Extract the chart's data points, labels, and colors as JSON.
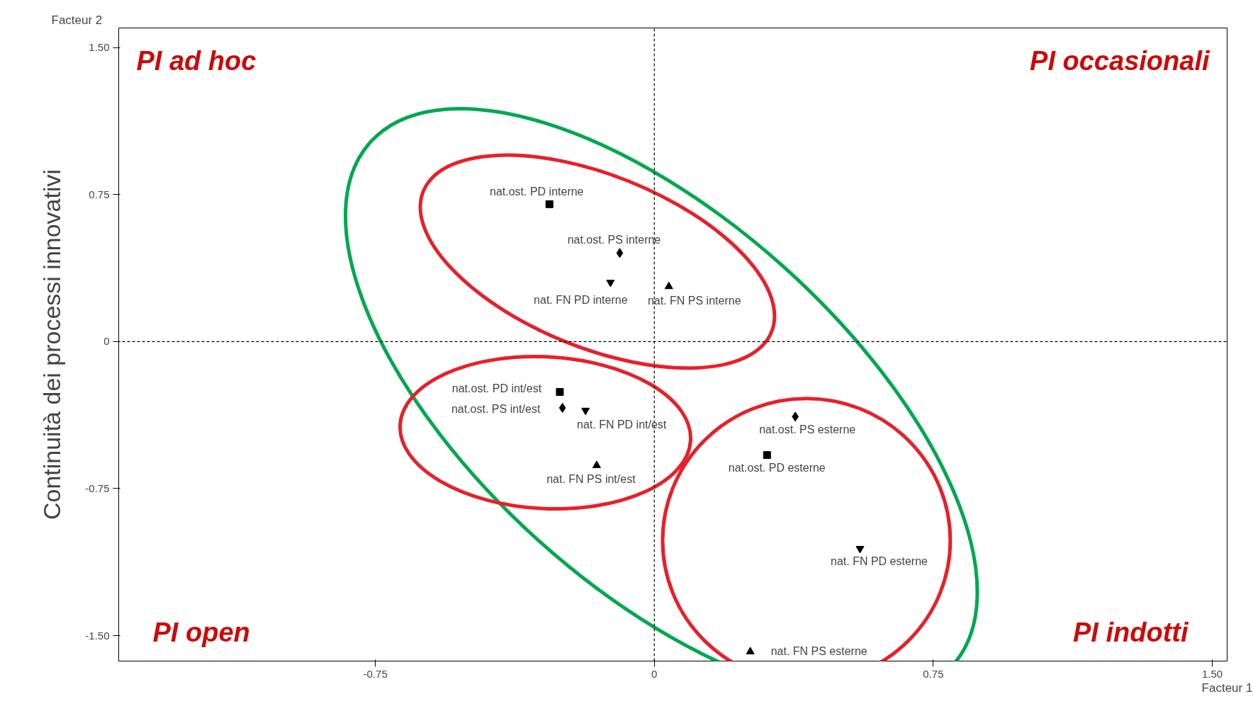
{
  "chart_data": {
    "type": "scatter",
    "xlabel": "Facteur 1",
    "ylabel": "Continuità dei processi innovativi",
    "xlim": [
      -1.44,
      1.54
    ],
    "ylim": [
      -1.63,
      1.6
    ],
    "xticks": [
      -0.75,
      0,
      0.75,
      {
        "value": 1.5,
        "label": "1.50"
      }
    ],
    "yticks": [
      {
        "value": 1.5,
        "label": "1.50"
      },
      0.75,
      0,
      -0.75,
      {
        "value": -1.5,
        "label": "-1.50"
      }
    ],
    "grid": false,
    "series": [
      {
        "marker": "square",
        "color": "#000000",
        "x": [
          -0.282,
          -0.254,
          0.303
        ],
        "values": [
          0.701,
          -0.257,
          -0.579
        ]
      },
      {
        "marker": "diamond",
        "color": "#000000",
        "x": [
          -0.093,
          -0.247,
          0.379
        ],
        "values": [
          0.452,
          -0.338,
          -0.383
        ]
      },
      {
        "marker": "triangle-down",
        "color": "#000000",
        "x": [
          -0.118,
          -0.185,
          0.553
        ],
        "values": [
          0.302,
          -0.351,
          -1.056
        ]
      },
      {
        "marker": "triangle",
        "color": "#000000",
        "x": [
          0.039,
          -0.155,
          0.258
        ],
        "values": [
          0.281,
          -0.632,
          -1.582
        ]
      }
    ],
    "ref_lines": [
      {
        "axis": "x",
        "value": 0,
        "color": "#000000",
        "line_style": "dashed"
      },
      {
        "axis": "y",
        "value": 0,
        "color": "#000000",
        "line_style": "dashed"
      }
    ],
    "annotations": [
      "Facteur 2",
      "PI ad hoc",
      "PI occasionali",
      "PI open",
      "PI indotti",
      {
        "text": "nat.ost. PD interne",
        "x": -0.282,
        "y": 0.701
      },
      {
        "text": "nat.ost. PS interne",
        "x": -0.093,
        "y": 0.452
      },
      {
        "text": "nat. FN PD interne",
        "x": -0.118,
        "y": 0.302
      },
      {
        "text": "nat. FN PS interne",
        "x": 0.039,
        "y": 0.281
      },
      {
        "text": "nat.ost. PD int/est",
        "x": -0.254,
        "y": -0.257
      },
      {
        "text": "nat.ost. PS int/est",
        "x": -0.247,
        "y": -0.338
      },
      {
        "text": "nat. FN PD int/est",
        "x": -0.185,
        "y": -0.351
      },
      {
        "text": "nat. FN PS int/est",
        "x": -0.155,
        "y": -0.632
      },
      {
        "text": "nat.ost. PS esterne",
        "x": 0.379,
        "y": -0.383
      },
      {
        "text": "nat.ost. PD esterne",
        "x": 0.303,
        "y": -0.579
      },
      {
        "text": "nat. FN PD esterne",
        "x": 0.553,
        "y": -1.056
      },
      {
        "text": "nat. FN PS esterne",
        "x": 0.258,
        "y": -1.582
      }
    ]
  }
}
